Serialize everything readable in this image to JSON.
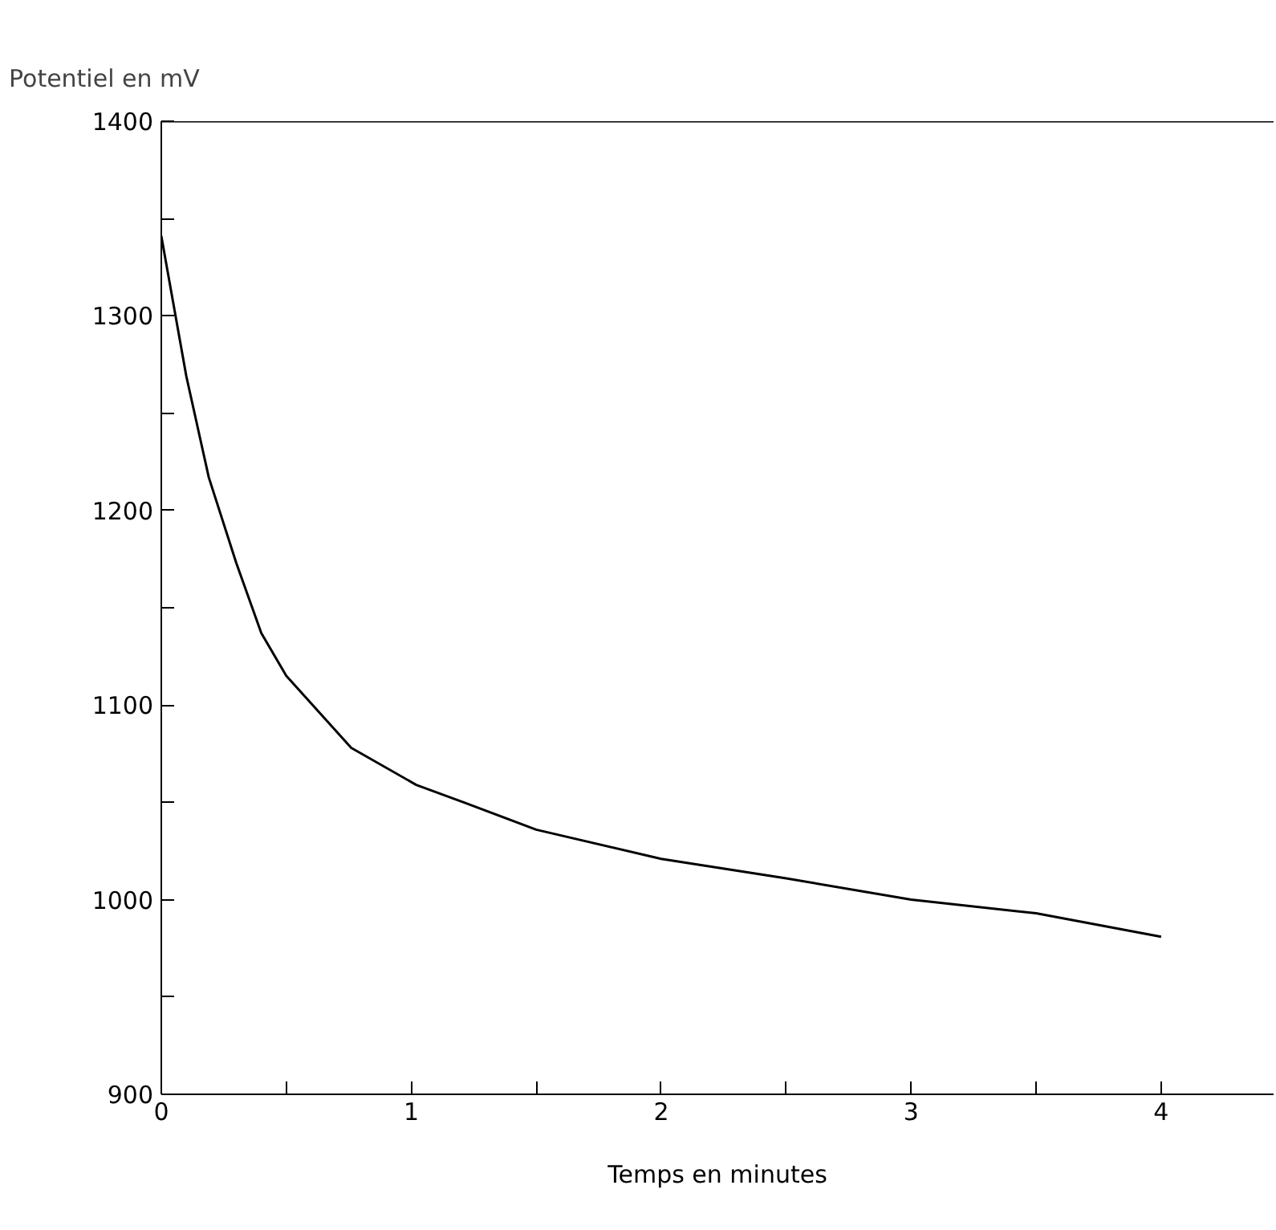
{
  "chart_data": {
    "type": "line",
    "xlabel": "Temps en minutes",
    "ylabel": "Potentiel en mV",
    "x": [
      0,
      0.1,
      0.19,
      0.3,
      0.4,
      0.5,
      0.76,
      1.02,
      1.21,
      1.5,
      2,
      2.5,
      3,
      3.5,
      4
    ],
    "values": [
      1341,
      1269,
      1217,
      1173,
      1137,
      1115,
      1078,
      1059,
      1050,
      1036,
      1021,
      1011,
      1000,
      993,
      981
    ],
    "color": "#000000",
    "xlim": [
      0,
      4.45
    ],
    "ylim": [
      900,
      1400
    ],
    "xticks": [
      0,
      {
        "value": 0.5,
        "label": null
      },
      1,
      {
        "value": 1.5,
        "label": null
      },
      2,
      {
        "value": 2.5,
        "label": null
      },
      3,
      {
        "value": 3.5,
        "label": null
      },
      4
    ],
    "yticks": [
      900,
      {
        "value": 950,
        "label": null
      },
      1000,
      {
        "value": 1050,
        "label": null
      },
      1100,
      {
        "value": 1150,
        "label": null
      },
      1200,
      {
        "value": 1250,
        "label": null
      },
      1300,
      {
        "value": 1350,
        "label": null
      },
      1400
    ],
    "grid": false,
    "marker": "none",
    "line_style": "solid"
  }
}
